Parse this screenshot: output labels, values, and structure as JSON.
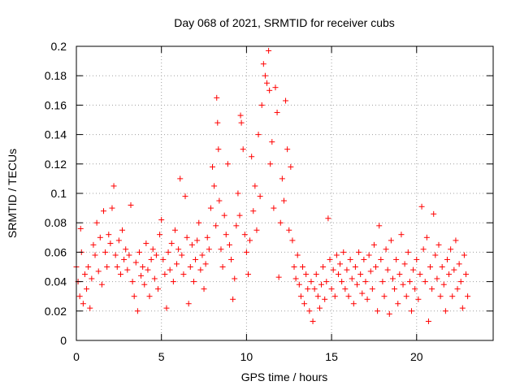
{
  "chart_data": {
    "type": "scatter",
    "title": "Day 068 of 2021, SRMTID for receiver cubs",
    "xlabel": "GPS time / hours",
    "ylabel": "SRMTID / TECUs",
    "xlim": [
      0,
      24.5
    ],
    "ylim": [
      0,
      0.2
    ],
    "xticks": [
      0,
      5,
      10,
      15,
      20
    ],
    "xtick_labels": [
      "0",
      "5",
      "10",
      "15",
      "20"
    ],
    "yticks": [
      0,
      0.02,
      0.04,
      0.06,
      0.08,
      0.1,
      0.12,
      0.14,
      0.16,
      0.18,
      0.2
    ],
    "ytick_labels": [
      "0",
      "0.02",
      "0.04",
      "0.06",
      "0.08",
      "0.1",
      "0.12",
      "0.14",
      "0.16",
      "0.18",
      "0.2"
    ],
    "grid": true,
    "marker": "+",
    "marker_color": "#ff0000",
    "series": [
      {
        "name": "SRMTID",
        "points": [
          [
            0.0,
            0.05
          ],
          [
            0.1,
            0.04
          ],
          [
            0.2,
            0.03
          ],
          [
            0.25,
            0.076
          ],
          [
            0.3,
            0.06
          ],
          [
            0.4,
            0.025
          ],
          [
            0.5,
            0.045
          ],
          [
            0.6,
            0.035
          ],
          [
            0.7,
            0.05
          ],
          [
            0.8,
            0.022
          ],
          [
            0.9,
            0.042
          ],
          [
            1.0,
            0.065
          ],
          [
            1.1,
            0.058
          ],
          [
            1.2,
            0.08
          ],
          [
            1.3,
            0.047
          ],
          [
            1.4,
            0.07
          ],
          [
            1.5,
            0.038
          ],
          [
            1.6,
            0.088
          ],
          [
            1.7,
            0.06
          ],
          [
            1.8,
            0.05
          ],
          [
            1.9,
            0.072
          ],
          [
            2.0,
            0.066
          ],
          [
            2.1,
            0.09
          ],
          [
            2.2,
            0.105
          ],
          [
            2.3,
            0.058
          ],
          [
            2.4,
            0.05
          ],
          [
            2.5,
            0.068
          ],
          [
            2.6,
            0.045
          ],
          [
            2.7,
            0.075
          ],
          [
            2.8,
            0.055
          ],
          [
            2.9,
            0.062
          ],
          [
            3.0,
            0.048
          ],
          [
            3.1,
            0.058
          ],
          [
            3.2,
            0.092
          ],
          [
            3.3,
            0.04
          ],
          [
            3.4,
            0.03
          ],
          [
            3.5,
            0.053
          ],
          [
            3.6,
            0.02
          ],
          [
            3.7,
            0.06
          ],
          [
            3.8,
            0.044
          ],
          [
            3.9,
            0.05
          ],
          [
            4.0,
            0.038
          ],
          [
            4.1,
            0.066
          ],
          [
            4.2,
            0.048
          ],
          [
            4.3,
            0.03
          ],
          [
            4.4,
            0.055
          ],
          [
            4.5,
            0.062
          ],
          [
            4.6,
            0.042
          ],
          [
            4.7,
            0.058
          ],
          [
            4.8,
            0.035
          ],
          [
            4.9,
            0.072
          ],
          [
            5.0,
            0.082
          ],
          [
            5.1,
            0.055
          ],
          [
            5.2,
            0.045
          ],
          [
            5.3,
            0.022
          ],
          [
            5.4,
            0.06
          ],
          [
            5.5,
            0.048
          ],
          [
            5.6,
            0.066
          ],
          [
            5.7,
            0.04
          ],
          [
            5.8,
            0.075
          ],
          [
            5.9,
            0.052
          ],
          [
            6.0,
            0.062
          ],
          [
            6.1,
            0.11
          ],
          [
            6.2,
            0.058
          ],
          [
            6.3,
            0.045
          ],
          [
            6.4,
            0.098
          ],
          [
            6.5,
            0.07
          ],
          [
            6.6,
            0.025
          ],
          [
            6.7,
            0.05
          ],
          [
            6.8,
            0.065
          ],
          [
            6.9,
            0.04
          ],
          [
            7.0,
            0.055
          ],
          [
            7.1,
            0.068
          ],
          [
            7.2,
            0.08
          ],
          [
            7.3,
            0.048
          ],
          [
            7.4,
            0.058
          ],
          [
            7.5,
            0.035
          ],
          [
            7.6,
            0.052
          ],
          [
            7.7,
            0.07
          ],
          [
            7.8,
            0.062
          ],
          [
            7.9,
            0.09
          ],
          [
            8.0,
            0.118
          ],
          [
            8.1,
            0.105
          ],
          [
            8.2,
            0.078
          ],
          [
            8.25,
            0.165
          ],
          [
            8.3,
            0.148
          ],
          [
            8.35,
            0.13
          ],
          [
            8.4,
            0.095
          ],
          [
            8.5,
            0.062
          ],
          [
            8.6,
            0.05
          ],
          [
            8.7,
            0.085
          ],
          [
            8.8,
            0.072
          ],
          [
            8.9,
            0.12
          ],
          [
            9.0,
            0.065
          ],
          [
            9.1,
            0.055
          ],
          [
            9.2,
            0.028
          ],
          [
            9.3,
            0.042
          ],
          [
            9.4,
            0.078
          ],
          [
            9.5,
            0.1
          ],
          [
            9.6,
            0.085
          ],
          [
            9.65,
            0.153
          ],
          [
            9.7,
            0.148
          ],
          [
            9.8,
            0.13
          ],
          [
            9.9,
            0.072
          ],
          [
            10.0,
            0.06
          ],
          [
            10.1,
            0.045
          ],
          [
            10.2,
            0.068
          ],
          [
            10.3,
            0.125
          ],
          [
            10.4,
            0.088
          ],
          [
            10.5,
            0.105
          ],
          [
            10.6,
            0.075
          ],
          [
            10.7,
            0.14
          ],
          [
            10.8,
            0.098
          ],
          [
            10.9,
            0.16
          ],
          [
            11.0,
            0.188
          ],
          [
            11.1,
            0.18
          ],
          [
            11.2,
            0.175
          ],
          [
            11.3,
            0.197
          ],
          [
            11.35,
            0.17
          ],
          [
            11.4,
            0.12
          ],
          [
            11.5,
            0.135
          ],
          [
            11.6,
            0.09
          ],
          [
            11.7,
            0.172
          ],
          [
            11.8,
            0.155
          ],
          [
            11.9,
            0.043
          ],
          [
            12.0,
            0.08
          ],
          [
            12.1,
            0.11
          ],
          [
            12.2,
            0.095
          ],
          [
            12.3,
            0.163
          ],
          [
            12.4,
            0.13
          ],
          [
            12.5,
            0.075
          ],
          [
            12.6,
            0.118
          ],
          [
            12.7,
            0.068
          ],
          [
            12.8,
            0.05
          ],
          [
            12.9,
            0.042
          ],
          [
            13.0,
            0.058
          ],
          [
            13.1,
            0.038
          ],
          [
            13.2,
            0.03
          ],
          [
            13.3,
            0.05
          ],
          [
            13.4,
            0.025
          ],
          [
            13.5,
            0.045
          ],
          [
            13.6,
            0.035
          ],
          [
            13.7,
            0.02
          ],
          [
            13.8,
            0.04
          ],
          [
            13.9,
            0.013
          ],
          [
            14.0,
            0.035
          ],
          [
            14.1,
            0.045
          ],
          [
            14.2,
            0.03
          ],
          [
            14.3,
            0.022
          ],
          [
            14.4,
            0.038
          ],
          [
            14.5,
            0.05
          ],
          [
            14.6,
            0.028
          ],
          [
            14.7,
            0.04
          ],
          [
            14.8,
            0.083
          ],
          [
            14.9,
            0.055
          ],
          [
            15.0,
            0.035
          ],
          [
            15.1,
            0.048
          ],
          [
            15.2,
            0.03
          ],
          [
            15.3,
            0.058
          ],
          [
            15.4,
            0.045
          ],
          [
            15.5,
            0.052
          ],
          [
            15.6,
            0.04
          ],
          [
            15.7,
            0.06
          ],
          [
            15.8,
            0.035
          ],
          [
            15.9,
            0.048
          ],
          [
            16.0,
            0.03
          ],
          [
            16.1,
            0.055
          ],
          [
            16.2,
            0.042
          ],
          [
            16.3,
            0.025
          ],
          [
            16.4,
            0.05
          ],
          [
            16.5,
            0.038
          ],
          [
            16.6,
            0.06
          ],
          [
            16.7,
            0.045
          ],
          [
            16.8,
            0.032
          ],
          [
            16.9,
            0.055
          ],
          [
            17.0,
            0.04
          ],
          [
            17.1,
            0.028
          ],
          [
            17.2,
            0.058
          ],
          [
            17.3,
            0.047
          ],
          [
            17.4,
            0.035
          ],
          [
            17.5,
            0.065
          ],
          [
            17.6,
            0.05
          ],
          [
            17.7,
            0.02
          ],
          [
            17.8,
            0.078
          ],
          [
            17.9,
            0.055
          ],
          [
            18.0,
            0.04
          ],
          [
            18.1,
            0.03
          ],
          [
            18.2,
            0.062
          ],
          [
            18.3,
            0.048
          ],
          [
            18.4,
            0.018
          ],
          [
            18.5,
            0.068
          ],
          [
            18.6,
            0.042
          ],
          [
            18.7,
            0.035
          ],
          [
            18.8,
            0.055
          ],
          [
            18.9,
            0.025
          ],
          [
            19.0,
            0.045
          ],
          [
            19.1,
            0.072
          ],
          [
            19.2,
            0.038
          ],
          [
            19.3,
            0.052
          ],
          [
            19.4,
            0.03
          ],
          [
            19.5,
            0.06
          ],
          [
            19.6,
            0.04
          ],
          [
            19.7,
            0.02
          ],
          [
            19.8,
            0.048
          ],
          [
            19.9,
            0.035
          ],
          [
            20.0,
            0.055
          ],
          [
            20.1,
            0.028
          ],
          [
            20.2,
            0.045
          ],
          [
            20.3,
            0.091
          ],
          [
            20.4,
            0.062
          ],
          [
            20.5,
            0.04
          ],
          [
            20.6,
            0.07
          ],
          [
            20.7,
            0.013
          ],
          [
            20.8,
            0.05
          ],
          [
            20.9,
            0.035
          ],
          [
            21.0,
            0.086
          ],
          [
            21.1,
            0.058
          ],
          [
            21.2,
            0.042
          ],
          [
            21.3,
            0.065
          ],
          [
            21.4,
            0.03
          ],
          [
            21.5,
            0.05
          ],
          [
            21.6,
            0.038
          ],
          [
            21.7,
            0.02
          ],
          [
            21.8,
            0.055
          ],
          [
            21.9,
            0.045
          ],
          [
            22.0,
            0.062
          ],
          [
            22.1,
            0.03
          ],
          [
            22.2,
            0.048
          ],
          [
            22.3,
            0.068
          ],
          [
            22.4,
            0.035
          ],
          [
            22.5,
            0.052
          ],
          [
            22.6,
            0.04
          ],
          [
            22.7,
            0.022
          ],
          [
            22.8,
            0.058
          ],
          [
            22.9,
            0.045
          ],
          [
            23.0,
            0.03
          ]
        ]
      }
    ]
  }
}
